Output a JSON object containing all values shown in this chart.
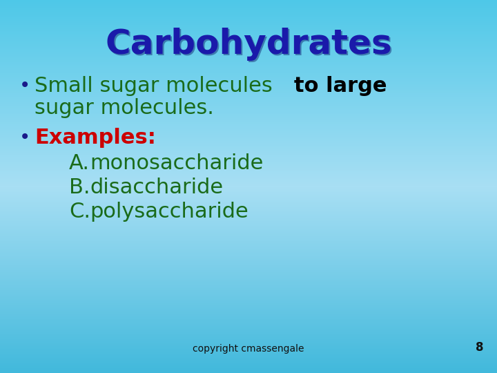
{
  "title": "Carbohydrates",
  "title_color": "#1a1aaa",
  "title_fontsize": 36,
  "bullet_dot_color": "#1a1a8a",
  "bullet1_green": "Small sugar molecules ",
  "bullet1_black": "to large",
  "bullet1_line2": "sugar molecules.",
  "green_color": "#1a6b1a",
  "black_bold_color": "#000000",
  "bullet2_label": "Examples:",
  "bullet2_label_color": "#cc0000",
  "items": [
    {
      "label": "A.",
      "text": "monosaccharide"
    },
    {
      "label": "B.",
      "text": "disaccharide"
    },
    {
      "label": "C.",
      "text": "polysaccharide"
    }
  ],
  "item_label_color": "#1a6b1a",
  "item_text_color": "#1a6b1a",
  "footer_text": "copyright cmassengale",
  "footer_num": "8",
  "bg_top": "#4ec8e8",
  "bg_mid": "#a8dff0",
  "bullet_fontsize": 22,
  "item_fontsize": 22,
  "title_shadow": true,
  "footer_fontsize": 10
}
